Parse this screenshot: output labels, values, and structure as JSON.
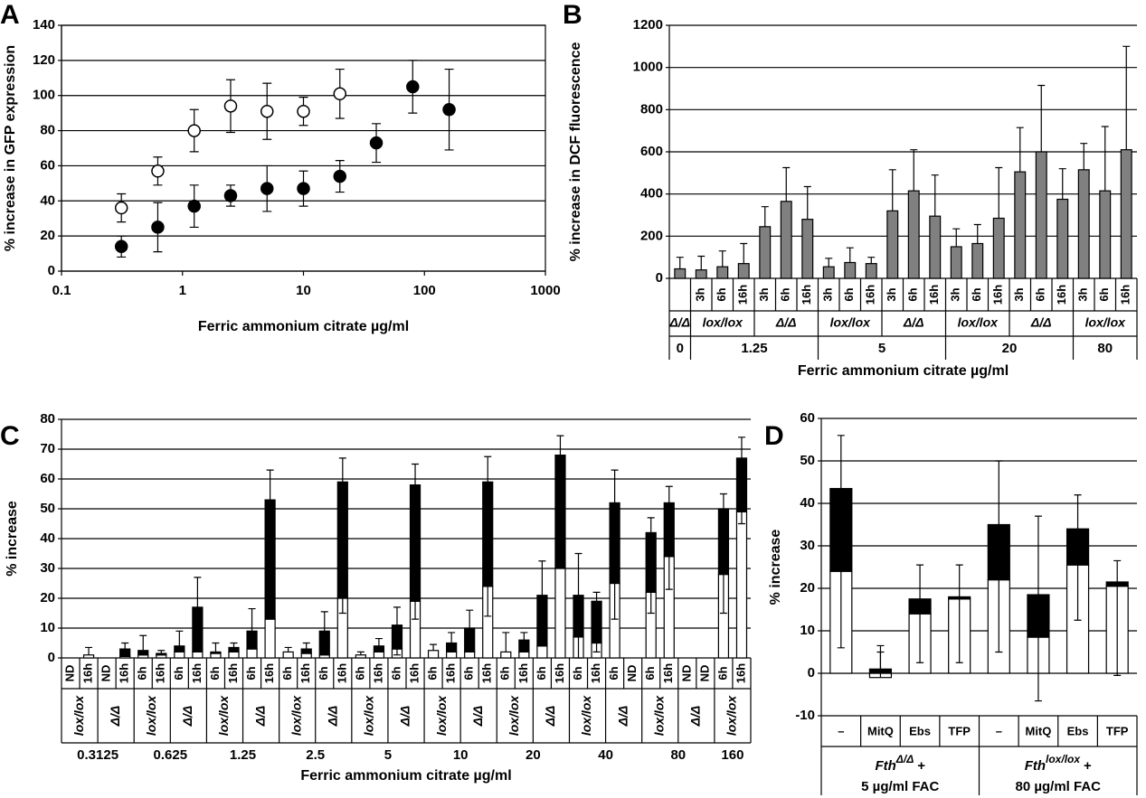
{
  "chart_data": [
    {
      "panel": "A",
      "type": "scatter",
      "x_label": "Ferric ammonium citrate µg/ml",
      "y_label": "% increase in GFP expression",
      "log_x": true,
      "grid": true,
      "xlim": [
        0.1,
        1000
      ],
      "xticks": [
        0.1,
        1,
        10,
        100,
        1000
      ],
      "ylim": [
        0,
        140
      ],
      "yticks": [
        0,
        20,
        40,
        60,
        80,
        100,
        120,
        140
      ],
      "series": [
        {
          "color": "#ffffff",
          "x": [
            0.3125,
            0.625,
            1.25,
            2.5,
            5,
            10,
            20
          ],
          "values": [
            36,
            57,
            80,
            94,
            91,
            91,
            101
          ],
          "errors": [
            8,
            8,
            12,
            15,
            16,
            8,
            14
          ]
        },
        {
          "color": "#000000",
          "x": [
            0.3125,
            0.625,
            1.25,
            2.5,
            5,
            10,
            20,
            40,
            80,
            160
          ],
          "values": [
            14,
            25,
            37,
            43,
            47,
            47,
            54,
            73,
            105,
            92
          ],
          "errors": [
            6,
            14,
            12,
            6,
            13,
            10,
            9,
            11,
            15,
            23
          ]
        }
      ]
    },
    {
      "panel": "B",
      "type": "bar",
      "x_label": "Ferric ammonium citrate µg/ml",
      "y_label": "% increase in DCF fluorescence",
      "color": "#808080",
      "grid": true,
      "ylim": [
        0,
        1200
      ],
      "yticks": [
        0,
        200,
        400,
        600,
        800,
        1000,
        1200
      ],
      "groups": [
        {
          "label": "0",
          "subgroups": [
            {
              "label": "Δ/Δ",
              "categories": [
                null
              ],
              "values": [
                45
              ],
              "errors": [
                55
              ]
            }
          ]
        },
        {
          "label": "1.25",
          "subgroups": [
            {
              "label": "lox/lox",
              "categories": [
                "3h",
                "6h",
                "16h"
              ],
              "values": [
                40,
                55,
                70
              ],
              "errors": [
                65,
                75,
                95
              ]
            },
            {
              "label": "Δ/Δ",
              "categories": [
                "3h",
                "6h",
                "16h"
              ],
              "values": [
                245,
                365,
                280
              ],
              "errors": [
                95,
                160,
                155
              ]
            }
          ]
        },
        {
          "label": "5",
          "subgroups": [
            {
              "label": "lox/lox",
              "categories": [
                "3h",
                "6h",
                "16h"
              ],
              "values": [
                55,
                75,
                70
              ],
              "errors": [
                40,
                70,
                30
              ]
            },
            {
              "label": "Δ/Δ",
              "categories": [
                "3h",
                "6h",
                "16h"
              ],
              "values": [
                320,
                415,
                295
              ],
              "errors": [
                195,
                195,
                195
              ]
            }
          ]
        },
        {
          "label": "20",
          "subgroups": [
            {
              "label": "lox/lox",
              "categories": [
                "3h",
                "6h",
                "16h"
              ],
              "values": [
                150,
                165,
                285
              ],
              "errors": [
                85,
                90,
                240
              ]
            },
            {
              "label": "Δ/Δ",
              "categories": [
                "3h",
                "6h",
                "16h"
              ],
              "values": [
                505,
                600,
                375
              ],
              "errors": [
                210,
                315,
                145
              ]
            }
          ]
        },
        {
          "label": "80",
          "subgroups": [
            {
              "label": "lox/lox",
              "categories": [
                "3h",
                "6h",
                "16h"
              ],
              "values": [
                515,
                415,
                610
              ],
              "errors": [
                125,
                305,
                490
              ]
            }
          ]
        }
      ]
    },
    {
      "panel": "C",
      "type": "stacked_bar",
      "x_label": "Ferric ammonium citrate µg/ml",
      "y_label": "% increase",
      "colors": [
        "#ffffff",
        "#000000"
      ],
      "grid": true,
      "ylim": [
        0,
        80
      ],
      "yticks": [
        0,
        10,
        20,
        30,
        40,
        50,
        60,
        70,
        80
      ],
      "groups": [
        {
          "label": "0.3125",
          "subgroups": [
            {
              "label": "lox/lox",
              "categories": [
                "ND",
                "16h"
              ],
              "base_values": [
                null,
                1
              ],
              "top_values": [
                null,
                0
              ],
              "errors": [
                null,
                2.5
              ],
              "base_errors": [
                null,
                null
              ]
            },
            {
              "label": "Δ/Δ",
              "categories": [
                "ND",
                "16h"
              ],
              "base_values": [
                null,
                0.5
              ],
              "top_values": [
                null,
                2.5
              ],
              "errors": [
                null,
                2
              ],
              "base_errors": [
                null,
                null
              ]
            }
          ]
        },
        {
          "label": "0.625",
          "subgroups": [
            {
              "label": "lox/lox",
              "categories": [
                "6h",
                "16h"
              ],
              "base_values": [
                1,
                1
              ],
              "top_values": [
                1.5,
                0.5
              ],
              "errors": [
                5,
                1
              ],
              "base_errors": [
                null,
                null
              ]
            },
            {
              "label": "Δ/Δ",
              "categories": [
                "6h",
                "16h"
              ],
              "base_values": [
                2,
                2
              ],
              "top_values": [
                2,
                15
              ],
              "errors": [
                5,
                10
              ],
              "base_errors": [
                null,
                null
              ]
            }
          ]
        },
        {
          "label": "1.25",
          "subgroups": [
            {
              "label": "lox/lox",
              "categories": [
                "6h",
                "16h"
              ],
              "base_values": [
                1.5,
                2
              ],
              "top_values": [
                0.5,
                1.5
              ],
              "errors": [
                3,
                1.5
              ],
              "base_errors": [
                null,
                null
              ]
            },
            {
              "label": "Δ/Δ",
              "categories": [
                "6h",
                "16h"
              ],
              "base_values": [
                3,
                13
              ],
              "top_values": [
                6,
                40
              ],
              "errors": [
                7.5,
                10
              ],
              "base_errors": [
                null,
                null
              ]
            }
          ]
        },
        {
          "label": "2.5",
          "subgroups": [
            {
              "label": "lox/lox",
              "categories": [
                "6h",
                "16h"
              ],
              "base_values": [
                2,
                1.5
              ],
              "top_values": [
                0,
                1.5
              ],
              "errors": [
                1.5,
                2
              ],
              "base_errors": [
                null,
                null
              ]
            },
            {
              "label": "Δ/Δ",
              "categories": [
                "6h",
                "16h"
              ],
              "base_values": [
                1,
                20
              ],
              "top_values": [
                8,
                39
              ],
              "errors": [
                6.5,
                8
              ],
              "base_errors": [
                null,
                5
              ]
            }
          ]
        },
        {
          "label": "5",
          "subgroups": [
            {
              "label": "lox/lox",
              "categories": [
                "6h",
                "16h"
              ],
              "base_values": [
                1,
                2
              ],
              "top_values": [
                0,
                2
              ],
              "errors": [
                1,
                2.5
              ],
              "base_errors": [
                null,
                null
              ]
            },
            {
              "label": "Δ/Δ",
              "categories": [
                "6h",
                "16h"
              ],
              "base_values": [
                3,
                19
              ],
              "top_values": [
                8,
                39
              ],
              "errors": [
                6,
                7
              ],
              "base_errors": [
                2,
                6
              ]
            }
          ]
        },
        {
          "label": "10",
          "subgroups": [
            {
              "label": "lox/lox",
              "categories": [
                "6h",
                "16h"
              ],
              "base_values": [
                2.5,
                2
              ],
              "top_values": [
                0,
                3
              ],
              "errors": [
                2,
                3.5
              ],
              "base_errors": [
                null,
                null
              ]
            },
            {
              "label": "Δ/Δ",
              "categories": [
                "6h",
                "16h"
              ],
              "base_values": [
                2,
                24
              ],
              "top_values": [
                8,
                35
              ],
              "errors": [
                6,
                8.5
              ],
              "base_errors": [
                null,
                10
              ]
            }
          ]
        },
        {
          "label": "20",
          "subgroups": [
            {
              "label": "lox/lox",
              "categories": [
                "6h",
                "16h"
              ],
              "base_values": [
                2,
                2
              ],
              "top_values": [
                0,
                4
              ],
              "errors": [
                6.5,
                2.5
              ],
              "base_errors": [
                null,
                null
              ]
            },
            {
              "label": "Δ/Δ",
              "categories": [
                "6h",
                "16h"
              ],
              "base_values": [
                4,
                30
              ],
              "top_values": [
                17,
                38
              ],
              "errors": [
                11.5,
                6.5
              ],
              "base_errors": [
                null,
                null
              ]
            }
          ]
        },
        {
          "label": "40",
          "subgroups": [
            {
              "label": "lox/lox",
              "categories": [
                "6h",
                "16h"
              ],
              "base_values": [
                7,
                5
              ],
              "top_values": [
                14,
                14
              ],
              "errors": [
                14,
                3
              ],
              "base_errors": [
                7,
                3
              ]
            },
            {
              "label": "Δ/Δ",
              "categories": [
                "6h",
                "ND"
              ],
              "base_values": [
                25,
                null
              ],
              "top_values": [
                27,
                null
              ],
              "errors": [
                11,
                null
              ],
              "base_errors": [
                12,
                null
              ]
            }
          ]
        },
        {
          "label": "80",
          "subgroups": [
            {
              "label": "lox/lox",
              "categories": [
                "6h",
                "16h"
              ],
              "base_values": [
                22,
                34
              ],
              "top_values": [
                20,
                18
              ],
              "errors": [
                5,
                5.5
              ],
              "base_errors": [
                7,
                11
              ]
            },
            {
              "label": "Δ/Δ",
              "categories": [
                "ND",
                "ND"
              ],
              "base_values": [
                null,
                null
              ],
              "top_values": [
                null,
                null
              ],
              "errors": [
                null,
                null
              ],
              "base_errors": [
                null,
                null
              ]
            }
          ]
        },
        {
          "label": "160",
          "subgroups": [
            {
              "label": "lox/lox",
              "categories": [
                "6h",
                "16h"
              ],
              "base_values": [
                28,
                49
              ],
              "top_values": [
                22,
                18
              ],
              "errors": [
                5,
                7
              ],
              "base_errors": [
                13,
                4
              ]
            }
          ]
        }
      ]
    },
    {
      "panel": "D",
      "type": "stacked_bar",
      "y_label": "% increase",
      "colors": [
        "#ffffff",
        "#000000"
      ],
      "grid": true,
      "ylim": [
        -10,
        60
      ],
      "yticks": [
        -10,
        0,
        10,
        20,
        30,
        40,
        50,
        60
      ],
      "groups": [
        {
          "genotype": {
            "base": "Fth",
            "sup": "Δ/Δ",
            "suffix": "+"
          },
          "dose": "5 µg/ml FAC",
          "categories": [
            "–",
            "MitQ",
            "Ebs",
            "TFP"
          ],
          "base_values": [
            24,
            -1,
            14,
            17.5
          ],
          "top_values": [
            19.5,
            1,
            3.5,
            0.5
          ],
          "errors": [
            12.5,
            5.5,
            8,
            7.5
          ],
          "base_errors": [
            18,
            6,
            11.5,
            15
          ]
        },
        {
          "genotype": {
            "base": "Fth",
            "sup": "lox/lox",
            "suffix": "+"
          },
          "dose": "80 µg/ml FAC",
          "categories": [
            "–",
            "MitQ",
            "Ebs",
            "TFP"
          ],
          "base_values": [
            22,
            8.5,
            25.5,
            20.5
          ],
          "top_values": [
            13,
            10,
            8.5,
            1
          ],
          "errors": [
            15,
            18.5,
            8,
            5
          ],
          "base_errors": [
            17,
            15,
            13,
            21
          ]
        }
      ]
    }
  ]
}
